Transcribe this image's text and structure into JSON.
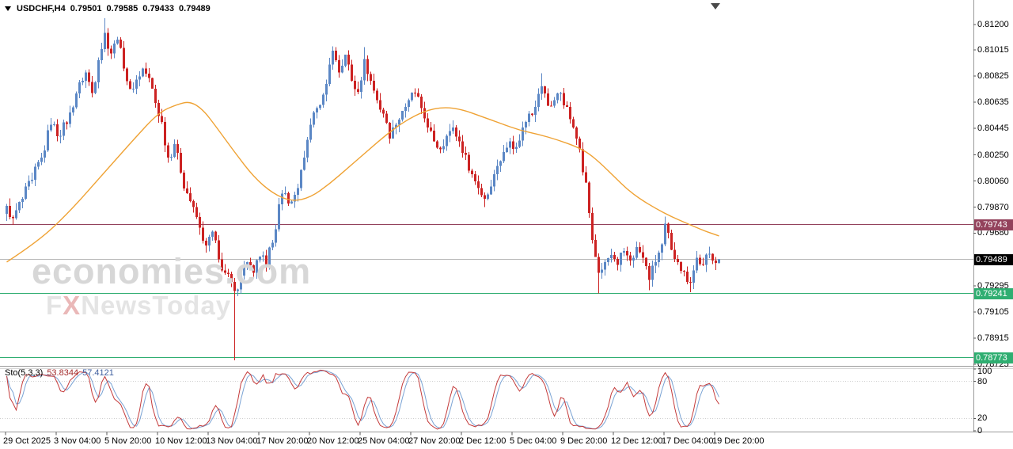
{
  "header": {
    "symbol_timeframe": "USDCHF,H4",
    "open": "0.79501",
    "high": "0.79585",
    "low": "0.79433",
    "close": "0.79489"
  },
  "watermark": {
    "line1": "economies.com",
    "fx_f": "F",
    "fx_x": "X",
    "fx_rest": "NewsToday"
  },
  "indicator_panel": {
    "label": "Sto(5,3,3)",
    "main_value": "53.8344",
    "signal_value": "57.4121"
  },
  "colors": {
    "bull": "#5b87c5",
    "bear": "#cc2222",
    "ma": "#efa234",
    "level_maroon": "#93425c",
    "level_green": "#2fae71",
    "current_line": "#b8b8b8",
    "current_box": "#000000",
    "sto_main": "#c43a3a",
    "sto_signal": "#7aa3d4",
    "divider": "#9a9a9a",
    "background": "#ffffff"
  },
  "chart_data": {
    "type": "candlestick",
    "title": "USDCHF H4",
    "symbol": "USDCHF",
    "timeframe": "H4",
    "bars": 226,
    "ylim": [
      0.7871,
      0.8138
    ],
    "y_ticks": [
      "0.81200",
      "0.81015",
      "0.80825",
      "0.80635",
      "0.80445",
      "0.80250",
      "0.80060",
      "0.79870",
      "0.79680",
      "0.79295",
      "0.79105",
      "0.78915",
      "0.78725"
    ],
    "x_labels": [
      "29 Oct 2025",
      "3 Nov 04:00",
      "5 Nov 20:00",
      "10 Nov 12:00",
      "13 Nov 04:00",
      "17 Nov 20:00",
      "20 Nov 12:00",
      "25 Nov 04:00",
      "27 Nov 20:00",
      "2 Dec 12:00",
      "5 Dec 04:00",
      "9 Dec 20:00",
      "12 Dec 12:00",
      "17 Dec 04:00",
      "19 Dec 20:00"
    ],
    "bars_per_label": 16,
    "current_price": {
      "value": 0.79489,
      "label": "0.79489"
    },
    "horizontal_levels": [
      {
        "label": "0.79743",
        "value": 0.79743,
        "color_key": "level_maroon"
      },
      {
        "label": "0.79241",
        "value": 0.79241,
        "color_key": "level_green"
      },
      {
        "label": "0.78773",
        "value": 0.78773,
        "color_key": "level_green"
      }
    ],
    "close_anchors": [
      [
        0,
        0.7988
      ],
      [
        2,
        0.7979
      ],
      [
        5,
        0.7993
      ],
      [
        8,
        0.8007
      ],
      [
        11,
        0.8023
      ],
      [
        14,
        0.8047
      ],
      [
        17,
        0.8039
      ],
      [
        20,
        0.8056
      ],
      [
        23,
        0.8078
      ],
      [
        25,
        0.8085
      ],
      [
        27,
        0.807
      ],
      [
        29,
        0.8094
      ],
      [
        31,
        0.8114
      ],
      [
        33,
        0.8099
      ],
      [
        35,
        0.8109
      ],
      [
        37,
        0.8088
      ],
      [
        39,
        0.8073
      ],
      [
        41,
        0.808
      ],
      [
        43,
        0.8088
      ],
      [
        45,
        0.8081
      ],
      [
        47,
        0.8063
      ],
      [
        49,
        0.8049
      ],
      [
        51,
        0.8023
      ],
      [
        53,
        0.8033
      ],
      [
        55,
        0.8012
      ],
      [
        57,
        0.7997
      ],
      [
        59,
        0.7987
      ],
      [
        61,
        0.7972
      ],
      [
        63,
        0.7959
      ],
      [
        65,
        0.7969
      ],
      [
        67,
        0.7949
      ],
      [
        69,
        0.7939
      ],
      [
        72,
        0.7926
      ],
      [
        74,
        0.7937
      ],
      [
        76,
        0.7947
      ],
      [
        78,
        0.7939
      ],
      [
        80,
        0.7951
      ],
      [
        82,
        0.7945
      ],
      [
        84,
        0.7961
      ],
      [
        86,
        0.7989
      ],
      [
        88,
        0.7997
      ],
      [
        90,
        0.7991
      ],
      [
        92,
        0.8001
      ],
      [
        94,
        0.8023
      ],
      [
        96,
        0.8047
      ],
      [
        98,
        0.8059
      ],
      [
        100,
        0.8069
      ],
      [
        102,
        0.8091
      ],
      [
        103,
        0.8101
      ],
      [
        105,
        0.8085
      ],
      [
        107,
        0.8098
      ],
      [
        109,
        0.8079
      ],
      [
        111,
        0.8071
      ],
      [
        113,
        0.8095
      ],
      [
        115,
        0.8079
      ],
      [
        117,
        0.8065
      ],
      [
        119,
        0.8055
      ],
      [
        121,
        0.8037
      ],
      [
        123,
        0.8047
      ],
      [
        125,
        0.8057
      ],
      [
        127,
        0.8065
      ],
      [
        129,
        0.807
      ],
      [
        131,
        0.8059
      ],
      [
        133,
        0.8045
      ],
      [
        135,
        0.8035
      ],
      [
        137,
        0.8029
      ],
      [
        139,
        0.8039
      ],
      [
        141,
        0.8045
      ],
      [
        143,
        0.8035
      ],
      [
        145,
        0.8025
      ],
      [
        147,
        0.8011
      ],
      [
        149,
        0.8001
      ],
      [
        151,
        0.7993
      ],
      [
        153,
        0.8002
      ],
      [
        155,
        0.8017
      ],
      [
        157,
        0.8027
      ],
      [
        159,
        0.8035
      ],
      [
        161,
        0.8031
      ],
      [
        163,
        0.8045
      ],
      [
        165,
        0.8055
      ],
      [
        167,
        0.806
      ],
      [
        169,
        0.8075
      ],
      [
        171,
        0.8061
      ],
      [
        173,
        0.8065
      ],
      [
        175,
        0.807
      ],
      [
        177,
        0.806
      ],
      [
        179,
        0.8045
      ],
      [
        181,
        0.8029
      ],
      [
        183,
        0.8005
      ],
      [
        185,
        0.7963
      ],
      [
        187,
        0.7939
      ],
      [
        189,
        0.7947
      ],
      [
        191,
        0.7952
      ],
      [
        193,
        0.7945
      ],
      [
        195,
        0.7955
      ],
      [
        197,
        0.7948
      ],
      [
        199,
        0.7958
      ],
      [
        201,
        0.795
      ],
      [
        203,
        0.7934
      ],
      [
        205,
        0.7947
      ],
      [
        207,
        0.796
      ],
      [
        208,
        0.7975
      ],
      [
        210,
        0.7956
      ],
      [
        212,
        0.7947
      ],
      [
        214,
        0.794
      ],
      [
        216,
        0.7932
      ],
      [
        218,
        0.795
      ],
      [
        220,
        0.7945
      ],
      [
        222,
        0.7953
      ],
      [
        225,
        0.79489
      ]
    ],
    "wick_overrides": [
      {
        "bar": 31,
        "high": 0.81245
      },
      {
        "bar": 72,
        "low": 0.78755
      },
      {
        "bar": 103,
        "high": 0.8104
      },
      {
        "bar": 113,
        "high": 0.81035
      },
      {
        "bar": 151,
        "low": 0.7987
      },
      {
        "bar": 169,
        "high": 0.80845
      },
      {
        "bar": 187,
        "low": 0.79241
      },
      {
        "bar": 203,
        "low": 0.79265
      },
      {
        "bar": 208,
        "high": 0.7978
      },
      {
        "bar": 216,
        "low": 0.7925
      }
    ],
    "ma": {
      "name": "moving-average",
      "points": [
        [
          0,
          0.7947
        ],
        [
          10,
          0.7962
        ],
        [
          20,
          0.7984
        ],
        [
          30,
          0.801
        ],
        [
          40,
          0.8036
        ],
        [
          48,
          0.8056
        ],
        [
          54,
          0.8062
        ],
        [
          58,
          0.8064
        ],
        [
          62,
          0.8058
        ],
        [
          66,
          0.8046
        ],
        [
          72,
          0.8027
        ],
        [
          78,
          0.8009
        ],
        [
          84,
          0.7997
        ],
        [
          90,
          0.7991
        ],
        [
          96,
          0.7994
        ],
        [
          102,
          0.8004
        ],
        [
          108,
          0.8016
        ],
        [
          114,
          0.8028
        ],
        [
          120,
          0.804
        ],
        [
          126,
          0.805
        ],
        [
          132,
          0.8057
        ],
        [
          138,
          0.806
        ],
        [
          144,
          0.8058
        ],
        [
          150,
          0.8053
        ],
        [
          156,
          0.8048
        ],
        [
          162,
          0.8043
        ],
        [
          168,
          0.804
        ],
        [
          174,
          0.8036
        ],
        [
          180,
          0.8031
        ],
        [
          184,
          0.8026
        ],
        [
          188,
          0.8018
        ],
        [
          192,
          0.8009
        ],
        [
          196,
          0.8
        ],
        [
          200,
          0.7993
        ],
        [
          205,
          0.7986
        ],
        [
          210,
          0.798
        ],
        [
          215,
          0.7975
        ],
        [
          220,
          0.797
        ],
        [
          225,
          0.7966
        ]
      ]
    },
    "stochastic": {
      "name": "Stochastic",
      "label": "Sto(5,3,3)",
      "period_k": 5,
      "slowing": 3,
      "period_d": 3,
      "last_main": 53.8344,
      "last_signal": 57.4121,
      "scale_labels": [
        "100",
        "80",
        "20",
        "0"
      ],
      "level_lines": [
        80,
        20
      ],
      "range": [
        0,
        100
      ]
    }
  }
}
